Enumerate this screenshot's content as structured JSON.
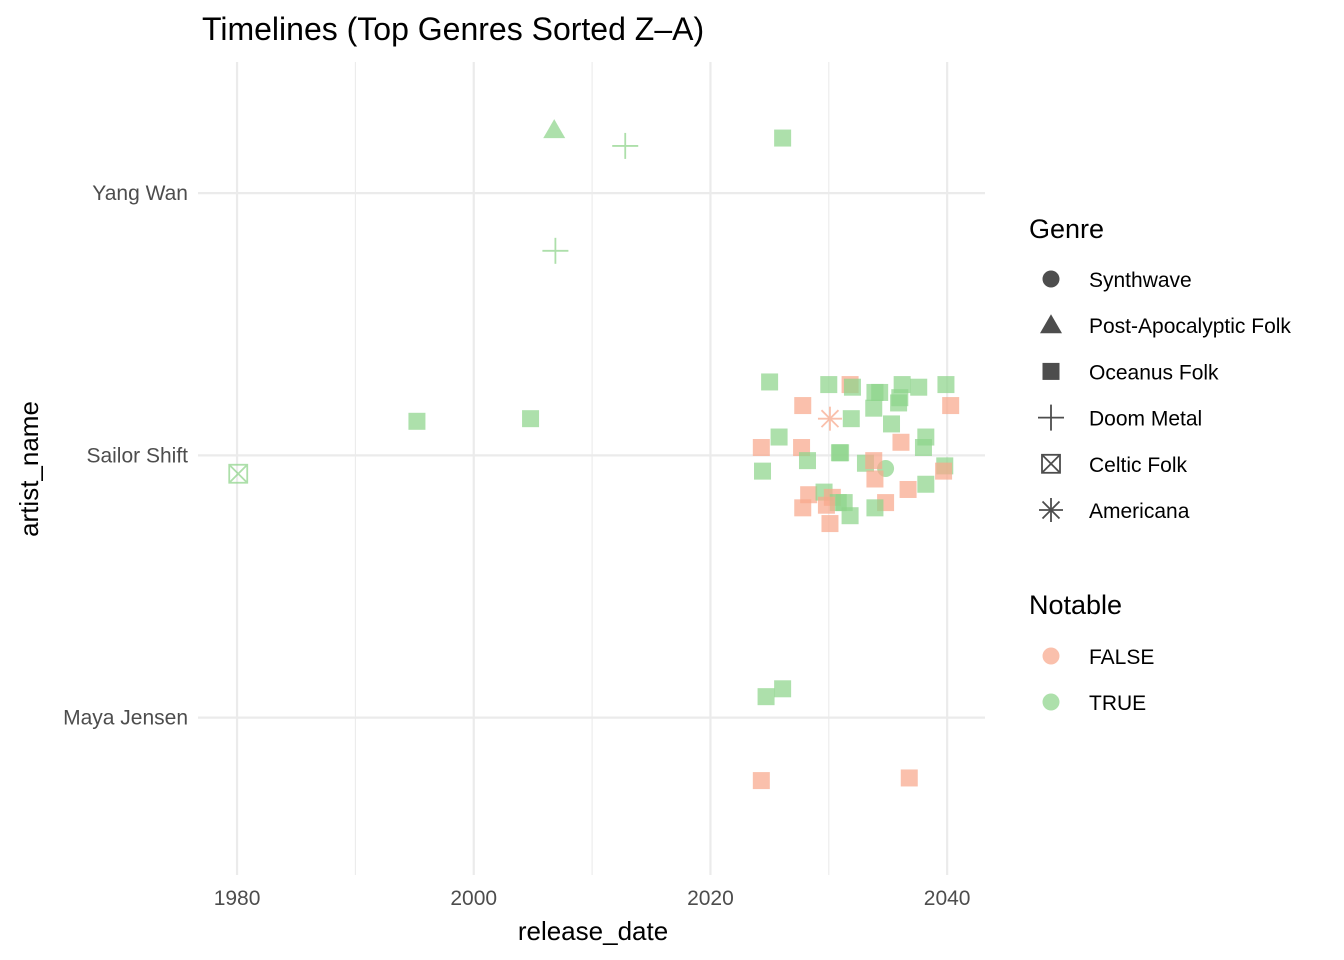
{
  "chart_data": {
    "type": "scatter",
    "title": "Timelines (Top Genres Sorted Z–A)",
    "xlabel": "release_date",
    "ylabel": "artist_name",
    "x_ticks": [
      1980,
      2000,
      2020,
      2040
    ],
    "x_tick_labels": [
      "1980",
      "2000",
      "2020",
      "2040"
    ],
    "xlim": [
      1976.7,
      2043.2
    ],
    "categories": [
      "Maya Jensen",
      "Sailor Shift",
      "Yang Wan"
    ],
    "grid": true,
    "legend_placement": "right",
    "legends": {
      "shape": {
        "title": "Genre",
        "entries": [
          {
            "label": "Synthwave",
            "shape": "circle"
          },
          {
            "label": "Post-Apocalyptic Folk",
            "shape": "triangle"
          },
          {
            "label": "Oceanus Folk",
            "shape": "square"
          },
          {
            "label": "Doom Metal",
            "shape": "plus"
          },
          {
            "label": "Celtic Folk",
            "shape": "boxcross"
          },
          {
            "label": "Americana",
            "shape": "asterisk"
          }
        ]
      },
      "color": {
        "title": "Notable",
        "entries": [
          {
            "label": "FALSE",
            "color": "#f8a88c"
          },
          {
            "label": "TRUE",
            "color": "#8ed48a"
          }
        ]
      }
    },
    "colors": {
      "FALSE": "#f8a88c",
      "TRUE": "#8ed48a"
    },
    "points": [
      {
        "x": 2006.8,
        "y": 2.24,
        "genre": "Post-Apocalyptic Folk",
        "notable": "TRUE"
      },
      {
        "x": 2012.8,
        "y": 2.18,
        "genre": "Doom Metal",
        "notable": "TRUE"
      },
      {
        "x": 2026.1,
        "y": 2.21,
        "genre": "Oceanus Folk",
        "notable": "TRUE"
      },
      {
        "x": 2006.9,
        "y": 1.78,
        "genre": "Doom Metal",
        "notable": "TRUE"
      },
      {
        "x": 1980.1,
        "y": 0.93,
        "genre": "Celtic Folk",
        "notable": "TRUE"
      },
      {
        "x": 1995.2,
        "y": 1.13,
        "genre": "Oceanus Folk",
        "notable": "TRUE"
      },
      {
        "x": 2004.8,
        "y": 1.14,
        "genre": "Oceanus Folk",
        "notable": "TRUE"
      },
      {
        "x": 2030.1,
        "y": 1.14,
        "genre": "Americana",
        "notable": "FALSE"
      },
      {
        "x": 2034.8,
        "y": 0.95,
        "genre": "Synthwave",
        "notable": "TRUE"
      },
      {
        "x": 2025.0,
        "y": 1.28,
        "genre": "Oceanus Folk",
        "notable": "TRUE"
      },
      {
        "x": 2030.0,
        "y": 1.27,
        "genre": "Oceanus Folk",
        "notable": "TRUE"
      },
      {
        "x": 2031.8,
        "y": 1.27,
        "genre": "Oceanus Folk",
        "notable": "FALSE"
      },
      {
        "x": 2032.0,
        "y": 1.26,
        "genre": "Oceanus Folk",
        "notable": "TRUE"
      },
      {
        "x": 2033.9,
        "y": 1.24,
        "genre": "Oceanus Folk",
        "notable": "TRUE"
      },
      {
        "x": 2034.3,
        "y": 1.24,
        "genre": "Oceanus Folk",
        "notable": "TRUE"
      },
      {
        "x": 2036.2,
        "y": 1.27,
        "genre": "Oceanus Folk",
        "notable": "TRUE"
      },
      {
        "x": 2037.6,
        "y": 1.26,
        "genre": "Oceanus Folk",
        "notable": "TRUE"
      },
      {
        "x": 2039.9,
        "y": 1.27,
        "genre": "Oceanus Folk",
        "notable": "TRUE"
      },
      {
        "x": 2027.8,
        "y": 1.19,
        "genre": "Oceanus Folk",
        "notable": "FALSE"
      },
      {
        "x": 2033.8,
        "y": 1.18,
        "genre": "Oceanus Folk",
        "notable": "TRUE"
      },
      {
        "x": 2035.9,
        "y": 1.2,
        "genre": "Oceanus Folk",
        "notable": "TRUE"
      },
      {
        "x": 2036.0,
        "y": 1.22,
        "genre": "Oceanus Folk",
        "notable": "TRUE"
      },
      {
        "x": 2040.3,
        "y": 1.19,
        "genre": "Oceanus Folk",
        "notable": "FALSE"
      },
      {
        "x": 2031.9,
        "y": 1.14,
        "genre": "Oceanus Folk",
        "notable": "TRUE"
      },
      {
        "x": 2035.3,
        "y": 1.12,
        "genre": "Oceanus Folk",
        "notable": "TRUE"
      },
      {
        "x": 2025.8,
        "y": 1.07,
        "genre": "Oceanus Folk",
        "notable": "TRUE"
      },
      {
        "x": 2036.1,
        "y": 1.05,
        "genre": "Oceanus Folk",
        "notable": "FALSE"
      },
      {
        "x": 2038.2,
        "y": 1.07,
        "genre": "Oceanus Folk",
        "notable": "TRUE"
      },
      {
        "x": 2024.3,
        "y": 1.03,
        "genre": "Oceanus Folk",
        "notable": "FALSE"
      },
      {
        "x": 2027.7,
        "y": 1.03,
        "genre": "Oceanus Folk",
        "notable": "FALSE"
      },
      {
        "x": 2030.9,
        "y": 1.01,
        "genre": "Oceanus Folk",
        "notable": "TRUE"
      },
      {
        "x": 2031.0,
        "y": 1.01,
        "genre": "Oceanus Folk",
        "notable": "TRUE"
      },
      {
        "x": 2038.0,
        "y": 1.03,
        "genre": "Oceanus Folk",
        "notable": "TRUE"
      },
      {
        "x": 2028.2,
        "y": 0.98,
        "genre": "Oceanus Folk",
        "notable": "TRUE"
      },
      {
        "x": 2033.1,
        "y": 0.97,
        "genre": "Oceanus Folk",
        "notable": "TRUE"
      },
      {
        "x": 2033.8,
        "y": 0.98,
        "genre": "Oceanus Folk",
        "notable": "FALSE"
      },
      {
        "x": 2039.8,
        "y": 0.96,
        "genre": "Oceanus Folk",
        "notable": "TRUE"
      },
      {
        "x": 2039.7,
        "y": 0.94,
        "genre": "Oceanus Folk",
        "notable": "FALSE"
      },
      {
        "x": 2024.4,
        "y": 0.94,
        "genre": "Oceanus Folk",
        "notable": "TRUE"
      },
      {
        "x": 2033.9,
        "y": 0.91,
        "genre": "Oceanus Folk",
        "notable": "FALSE"
      },
      {
        "x": 2038.2,
        "y": 0.89,
        "genre": "Oceanus Folk",
        "notable": "TRUE"
      },
      {
        "x": 2036.7,
        "y": 0.87,
        "genre": "Oceanus Folk",
        "notable": "FALSE"
      },
      {
        "x": 2028.3,
        "y": 0.85,
        "genre": "Oceanus Folk",
        "notable": "FALSE"
      },
      {
        "x": 2029.6,
        "y": 0.86,
        "genre": "Oceanus Folk",
        "notable": "TRUE"
      },
      {
        "x": 2030.3,
        "y": 0.84,
        "genre": "Oceanus Folk",
        "notable": "FALSE"
      },
      {
        "x": 2030.8,
        "y": 0.82,
        "genre": "Oceanus Folk",
        "notable": "TRUE"
      },
      {
        "x": 2031.3,
        "y": 0.82,
        "genre": "Oceanus Folk",
        "notable": "TRUE"
      },
      {
        "x": 2034.8,
        "y": 0.82,
        "genre": "Oceanus Folk",
        "notable": "FALSE"
      },
      {
        "x": 2027.8,
        "y": 0.8,
        "genre": "Oceanus Folk",
        "notable": "FALSE"
      },
      {
        "x": 2029.8,
        "y": 0.81,
        "genre": "Oceanus Folk",
        "notable": "FALSE"
      },
      {
        "x": 2033.9,
        "y": 0.8,
        "genre": "Oceanus Folk",
        "notable": "TRUE"
      },
      {
        "x": 2031.8,
        "y": 0.77,
        "genre": "Oceanus Folk",
        "notable": "TRUE"
      },
      {
        "x": 2030.1,
        "y": 0.74,
        "genre": "Oceanus Folk",
        "notable": "FALSE"
      },
      {
        "x": 2026.1,
        "y": 0.11,
        "genre": "Oceanus Folk",
        "notable": "TRUE"
      },
      {
        "x": 2024.7,
        "y": 0.08,
        "genre": "Oceanus Folk",
        "notable": "TRUE"
      },
      {
        "x": 2024.3,
        "y": -0.24,
        "genre": "Oceanus Folk",
        "notable": "FALSE"
      },
      {
        "x": 2036.8,
        "y": -0.23,
        "genre": "Oceanus Folk",
        "notable": "FALSE"
      }
    ]
  }
}
